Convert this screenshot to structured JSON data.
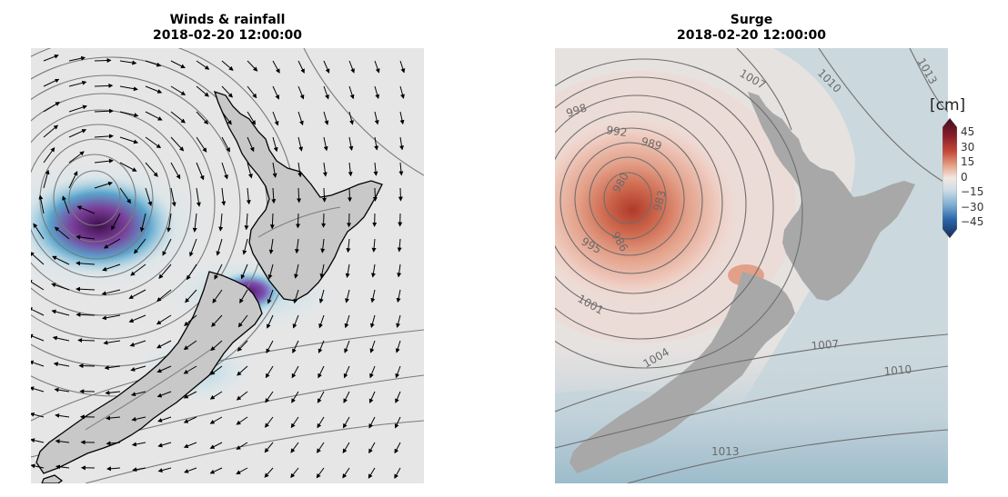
{
  "panels": [
    {
      "title_line1": "Winds & rainfall",
      "title_line2": "2018-02-20 12:00:00"
    },
    {
      "title_line1": "Surge",
      "title_line2": "2018-02-20 12:00:00"
    }
  ],
  "surge_contour_labels": [
    "1007",
    "1010",
    "1013",
    "998",
    "992",
    "989",
    "983",
    "980",
    "986",
    "995",
    "1001",
    "1004",
    "1007",
    "1010",
    "1013"
  ],
  "colorbar": {
    "unit_label": "[cm]",
    "ticks": [
      "45",
      "30",
      "15",
      "0",
      "−15",
      "−30",
      "−45"
    ]
  },
  "colors": {
    "sea_background": "#e6e6e6",
    "land": "#c8c8c8",
    "land_surge": "#a8a8a8",
    "isobar": "#7a7a7a",
    "rain_low": "#b8dbe8",
    "rain_mid": "#5aa5cc",
    "rain_high": "#7a3f9a",
    "rain_peak": "#3e0f4a",
    "surge_pos_low": "#f0d4cc",
    "surge_pos_mid": "#e09a80",
    "surge_pos_high": "#c4523a",
    "surge_neg_low": "#c9d6dc",
    "surge_neg_mid": "#8eb4c8"
  }
}
